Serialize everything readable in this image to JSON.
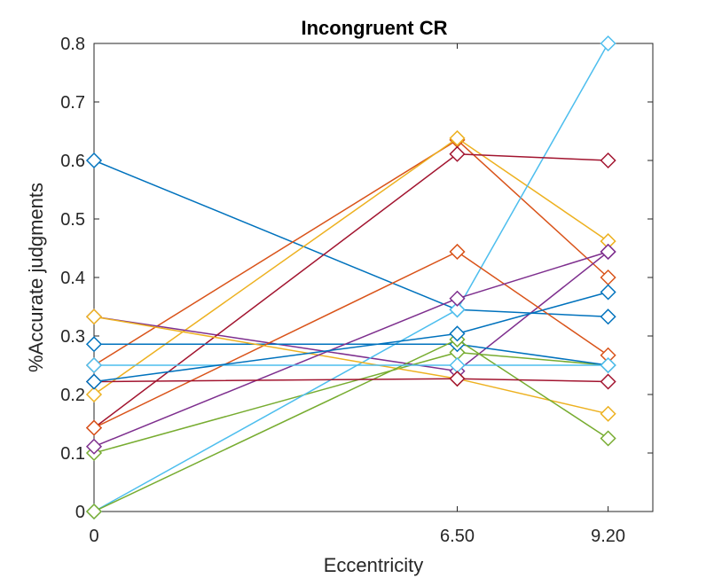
{
  "chart_data": {
    "type": "line",
    "title": "Incongruent CR",
    "xlabel": "Eccentricity",
    "ylabel": "%Accurate judgments",
    "x": [
      0,
      6.5,
      9.2
    ],
    "x_tick_labels": [
      "0",
      "6.50",
      "9.20"
    ],
    "xlim": [
      0,
      10
    ],
    "ylim": [
      0,
      0.8
    ],
    "y_ticks": [
      0,
      0.1,
      0.2,
      0.3,
      0.4,
      0.5,
      0.6,
      0.7,
      0.8
    ],
    "y_tick_labels": [
      "0",
      "0.1",
      "0.2",
      "0.3",
      "0.4",
      "0.5",
      "0.6",
      "0.7",
      "0.8"
    ],
    "grid": false,
    "marker": "diamond",
    "series": [
      {
        "color": "#0072BD",
        "values": [
          0.6,
          0.345,
          0.333
        ]
      },
      {
        "color": "#D95319",
        "values": [
          0.25,
          0.635,
          0.4
        ]
      },
      {
        "color": "#EDB120",
        "values": [
          0.2,
          0.638,
          0.462
        ]
      },
      {
        "color": "#7E2F8E",
        "values": [
          0.333,
          0.24,
          0.444
        ]
      },
      {
        "color": "#77AC30",
        "values": [
          0.1,
          0.272,
          0.25
        ]
      },
      {
        "color": "#4DBEEE",
        "values": [
          0.0,
          0.345,
          0.8
        ]
      },
      {
        "color": "#A2142F",
        "values": [
          0.143,
          0.611,
          0.6
        ]
      },
      {
        "color": "#0072BD",
        "values": [
          0.286,
          0.286,
          0.25
        ]
      },
      {
        "color": "#D95319",
        "values": [
          0.143,
          0.444,
          0.267
        ]
      },
      {
        "color": "#EDB120",
        "values": [
          0.333,
          0.227,
          0.167
        ]
      },
      {
        "color": "#7E2F8E",
        "values": [
          0.111,
          0.364,
          0.444
        ]
      },
      {
        "color": "#77AC30",
        "values": [
          0.0,
          0.294,
          0.125
        ]
      },
      {
        "color": "#4DBEEE",
        "values": [
          0.25,
          0.25,
          0.25
        ]
      },
      {
        "color": "#A2142F",
        "values": [
          0.222,
          0.227,
          0.222
        ]
      },
      {
        "color": "#0072BD",
        "values": [
          0.222,
          0.304,
          0.375
        ]
      }
    ]
  }
}
